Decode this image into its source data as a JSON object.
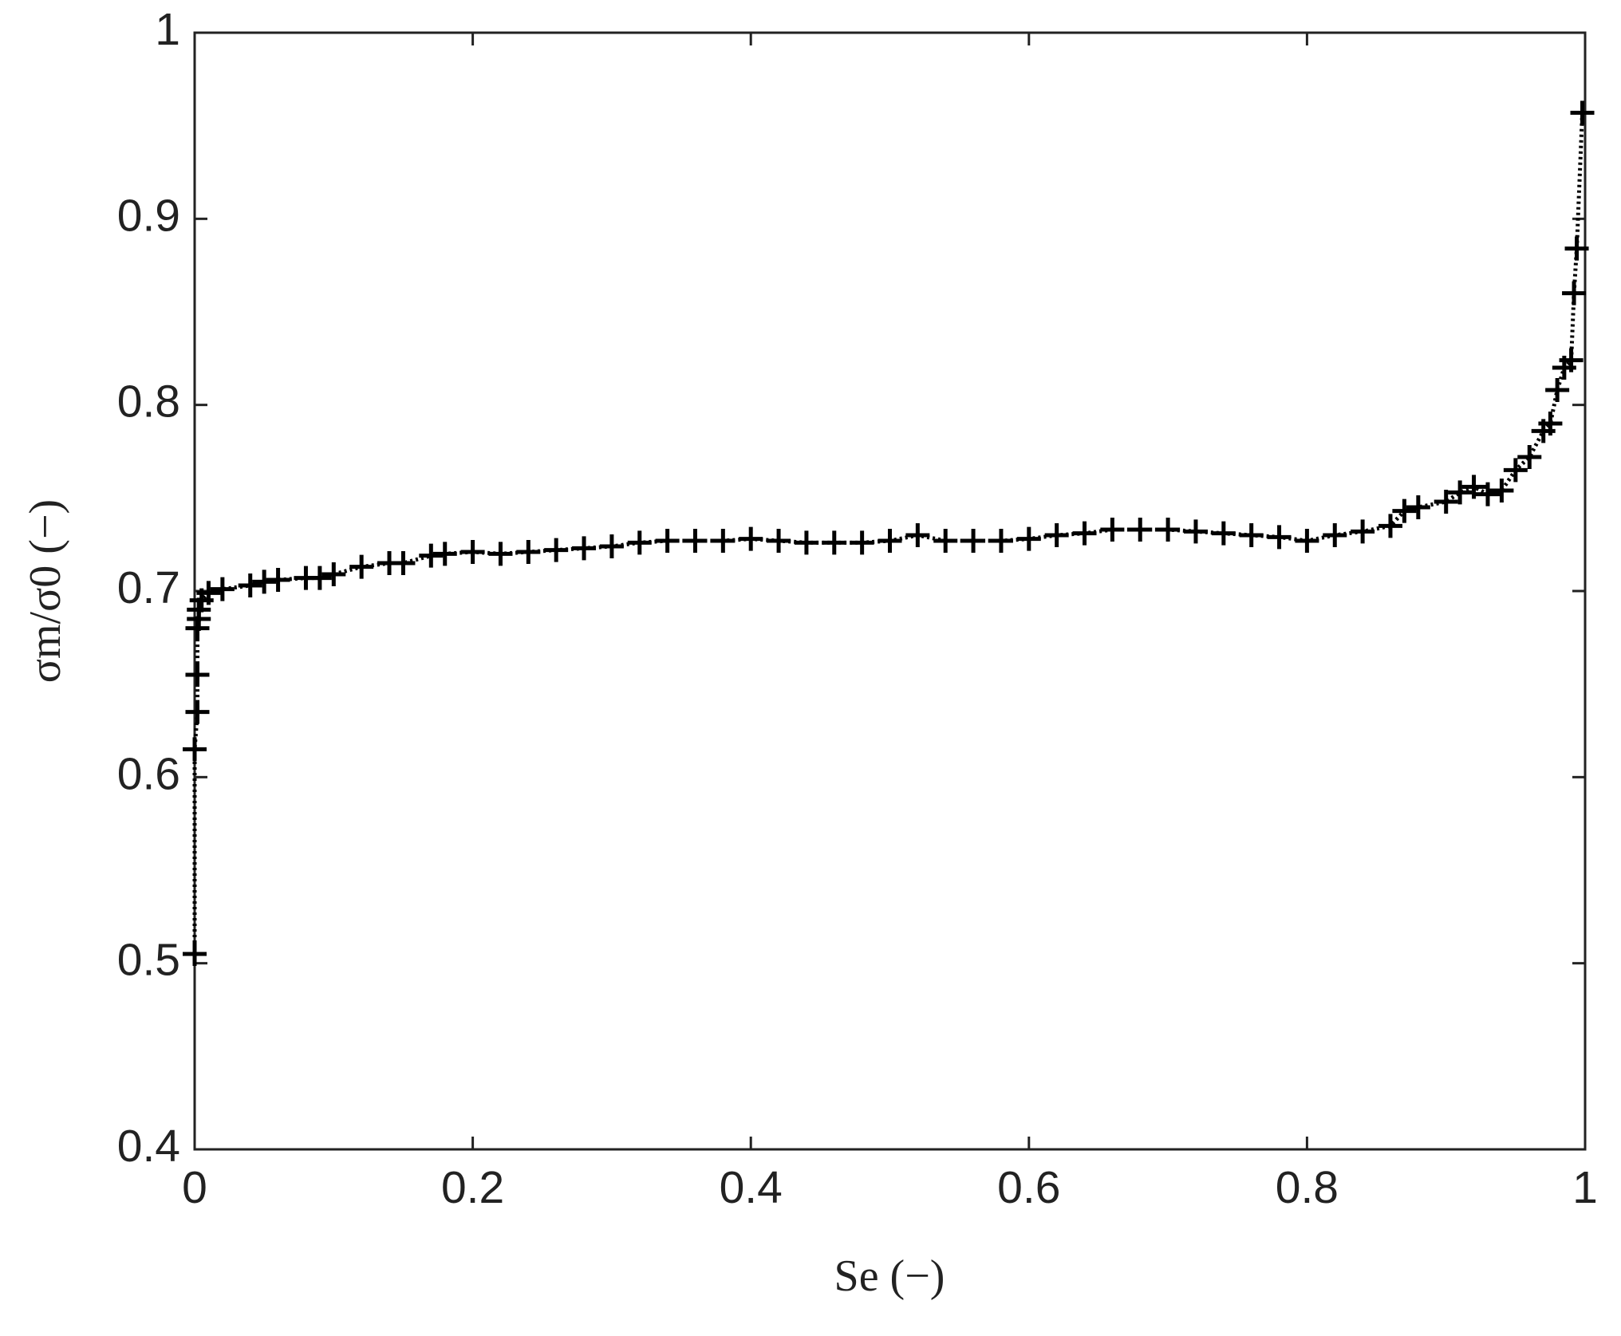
{
  "chart_data": {
    "type": "line",
    "xlabel": "Se (−)",
    "ylabel": "σm/σ0 (−)",
    "x": [
      0,
      0,
      0.002,
      0.002,
      0.002,
      0.003,
      0.003,
      0.005,
      0.01,
      0.02,
      0.04,
      0.05,
      0.06,
      0.08,
      0.09,
      0.1,
      0.12,
      0.14,
      0.15,
      0.17,
      0.18,
      0.2,
      0.22,
      0.24,
      0.26,
      0.28,
      0.3,
      0.32,
      0.34,
      0.36,
      0.38,
      0.4,
      0.42,
      0.44,
      0.46,
      0.48,
      0.5,
      0.52,
      0.54,
      0.56,
      0.58,
      0.6,
      0.62,
      0.64,
      0.66,
      0.68,
      0.7,
      0.72,
      0.74,
      0.76,
      0.78,
      0.8,
      0.82,
      0.84,
      0.86,
      0.87,
      0.88,
      0.9,
      0.91,
      0.92,
      0.93,
      0.94,
      0.95,
      0.96,
      0.97,
      0.975,
      0.98,
      0.985,
      0.99,
      0.992,
      0.994,
      0.998
    ],
    "series": [
      {
        "color": "#000000",
        "marker": "+",
        "linestyle": "dotted",
        "values": [
          0.505,
          0.615,
          0.635,
          0.655,
          0.68,
          0.685,
          0.69,
          0.695,
          0.699,
          0.701,
          0.703,
          0.705,
          0.706,
          0.707,
          0.707,
          0.709,
          0.713,
          0.715,
          0.715,
          0.719,
          0.72,
          0.721,
          0.72,
          0.721,
          0.722,
          0.723,
          0.724,
          0.726,
          0.727,
          0.727,
          0.727,
          0.728,
          0.727,
          0.726,
          0.726,
          0.726,
          0.727,
          0.73,
          0.727,
          0.727,
          0.727,
          0.728,
          0.73,
          0.731,
          0.733,
          0.733,
          0.733,
          0.732,
          0.731,
          0.73,
          0.729,
          0.727,
          0.73,
          0.732,
          0.735,
          0.743,
          0.745,
          0.748,
          0.753,
          0.756,
          0.752,
          0.754,
          0.765,
          0.772,
          0.786,
          0.79,
          0.808,
          0.82,
          0.824,
          0.86,
          0.884,
          0.957
        ]
      }
    ],
    "xlim": [
      0,
      1
    ],
    "ylim": [
      0.4,
      1
    ],
    "xticks": [
      0,
      0.2,
      0.4,
      0.6,
      0.8,
      1
    ],
    "yticks": [
      0.4,
      0.5,
      0.6,
      0.7,
      0.8,
      0.9,
      1
    ],
    "grid": false
  }
}
